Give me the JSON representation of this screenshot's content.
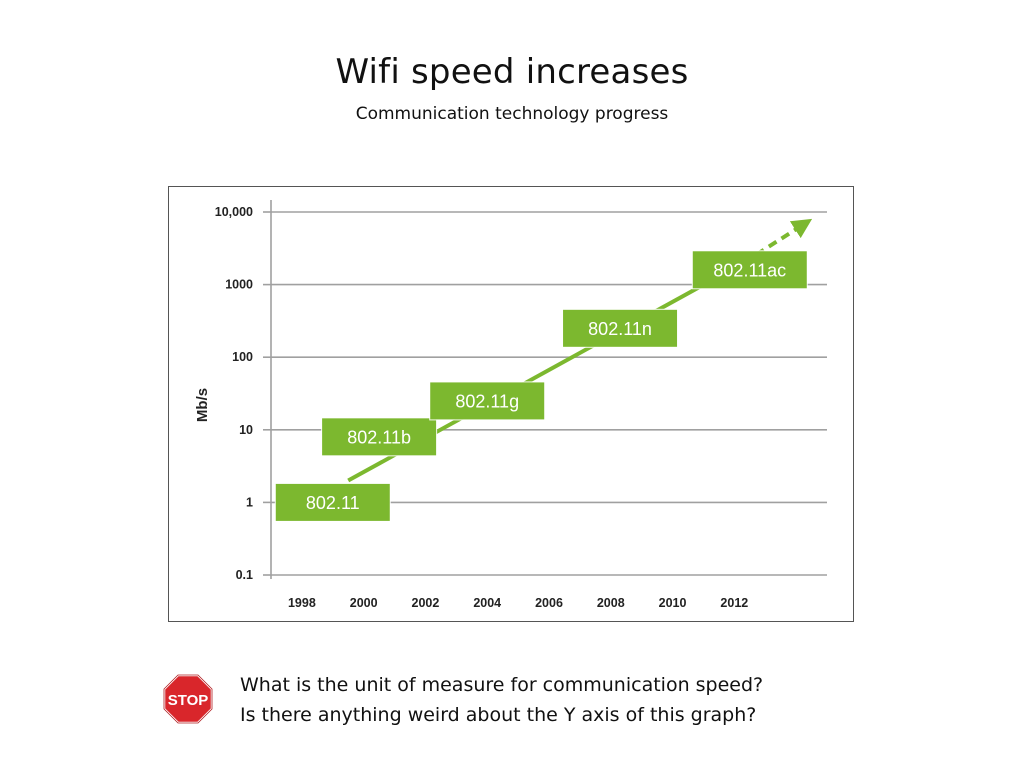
{
  "slide": {
    "title": "Wifi speed increases",
    "subtitle": "Communication technology progress",
    "questions": [
      "What is the unit of measure for communication speed?",
      "Is there anything weird about the Y axis of this graph?"
    ],
    "stop_sign_text": "STOP",
    "stop_sign_color": "#d9262b"
  },
  "chart_data": {
    "type": "line",
    "title": "",
    "xlabel": "",
    "ylabel": "Mb/s",
    "yscale": "log",
    "ylim": [
      0.1,
      10000
    ],
    "xlim": [
      1997,
      2015
    ],
    "y_tick_labels": [
      "10,000",
      "1000",
      "100",
      "10",
      "1",
      "0.1"
    ],
    "y_tick_values": [
      10000,
      1000,
      100,
      10,
      1,
      0.1
    ],
    "x_tick_labels": [
      "1998",
      "2000",
      "2002",
      "2004",
      "2006",
      "2008",
      "2010",
      "2012"
    ],
    "x_tick_values": [
      1998,
      2000,
      2002,
      2004,
      2006,
      2008,
      2010,
      2012
    ],
    "grid": "horizontal",
    "color": "#7cb82f",
    "trend": {
      "start": {
        "x": 1999.5,
        "y": 2
      },
      "end": {
        "x": 2012.3,
        "y": 2000
      },
      "extrapolated_end": {
        "x": 2014.3,
        "y": 7000
      }
    },
    "points": [
      {
        "label": "802.11",
        "x": 1999.0,
        "y": 1
      },
      {
        "label": "802.11b",
        "x": 2000.5,
        "y": 8
      },
      {
        "label": "802.11g",
        "x": 2004.0,
        "y": 25
      },
      {
        "label": "802.11n",
        "x": 2008.3,
        "y": 250
      },
      {
        "label": "802.11ac",
        "x": 2012.5,
        "y": 1600
      }
    ]
  }
}
